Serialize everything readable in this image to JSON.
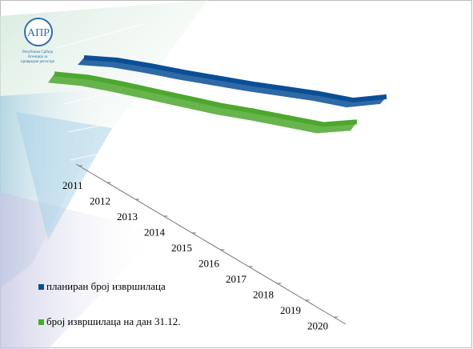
{
  "logo": {
    "mark": "АПР",
    "lines": [
      "Република Србија",
      "Агенција за",
      "привредне регистре"
    ]
  },
  "chart_data": {
    "type": "ribbon",
    "categories": [
      "2011",
      "2012",
      "2013",
      "2014",
      "2015",
      "2016",
      "2017",
      "2018",
      "2019",
      "2020"
    ],
    "series": [
      {
        "name": "планиран број извршилаца",
        "color": "#0a4f96",
        "values": [
          100,
          99,
          94,
          88,
          83,
          78,
          74,
          70,
          64,
          70
        ]
      },
      {
        "name": "број извршилаца на дан 31.12.",
        "color": "#4ea72e",
        "values": [
          90,
          89,
          84,
          78,
          72,
          66,
          62,
          57,
          52,
          58
        ]
      }
    ],
    "legend": "bottom-left"
  }
}
